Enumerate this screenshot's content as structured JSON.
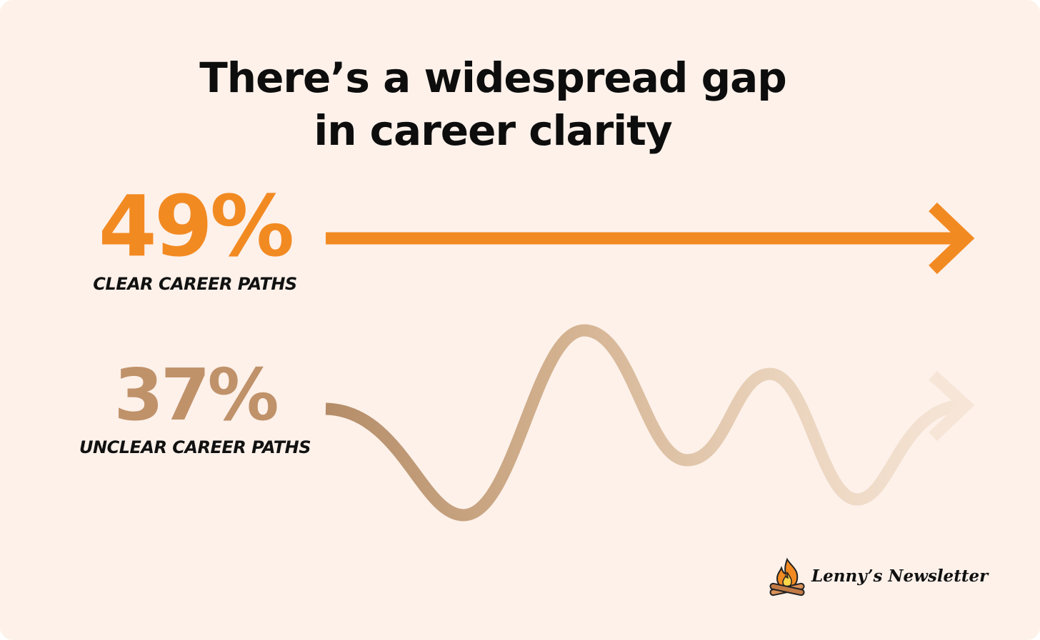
{
  "title": {
    "line1": "There’s a widespread gap",
    "line2": "in career clarity"
  },
  "clear": {
    "value": "49%",
    "label": "CLEAR CAREER PATHS",
    "color": "#f28a22"
  },
  "unclear": {
    "value": "37%",
    "label": "UNCLEAR CAREER PATHS",
    "color": "#c0926a"
  },
  "brand": {
    "name": "Lenny’s Newsletter",
    "icon": "campfire-icon"
  }
}
